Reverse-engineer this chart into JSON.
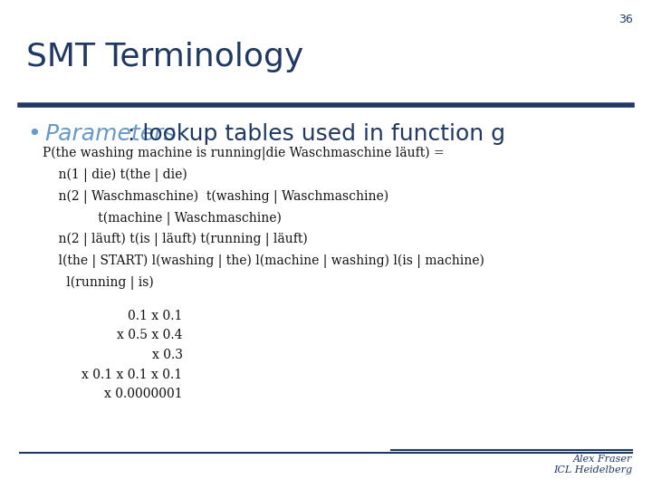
{
  "slide_number": "36",
  "title": "SMT Terminology",
  "title_color": "#1F3864",
  "title_fontsize": 26,
  "slide_bg": "#FFFFFF",
  "rule_color": "#1F3864",
  "bullet_label": "Parameters",
  "bullet_label_color": "#6699CC",
  "bullet_rest": ": lookup tables used in function g",
  "bullet_fontsize": 18,
  "body_lines": [
    "P(the washing machine is running|die Waschmaschine läuft) =",
    "    n(1 | die) t(the | die)",
    "    n(2 | Waschmaschine)  t(washing | Waschmaschine)",
    "              t(machine | Waschmaschine)",
    "    n(2 | läuft) t(is | läuft) t(running | läuft)",
    "    l(the | START) l(washing | the) l(machine | washing) l(is | machine)",
    "      l(running | is)"
  ],
  "math_lines": [
    "0.1 x 0.1",
    "x 0.5 x 0.4",
    "x 0.3",
    "x 0.1 x 0.1 x 0.1",
    "x 0.0000001"
  ],
  "body_fontsize": 10,
  "math_fontsize": 10,
  "footer_right_line1": "Alex Fraser",
  "footer_right_line2": "ICL Heidelberg",
  "footer_color": "#1F3864"
}
